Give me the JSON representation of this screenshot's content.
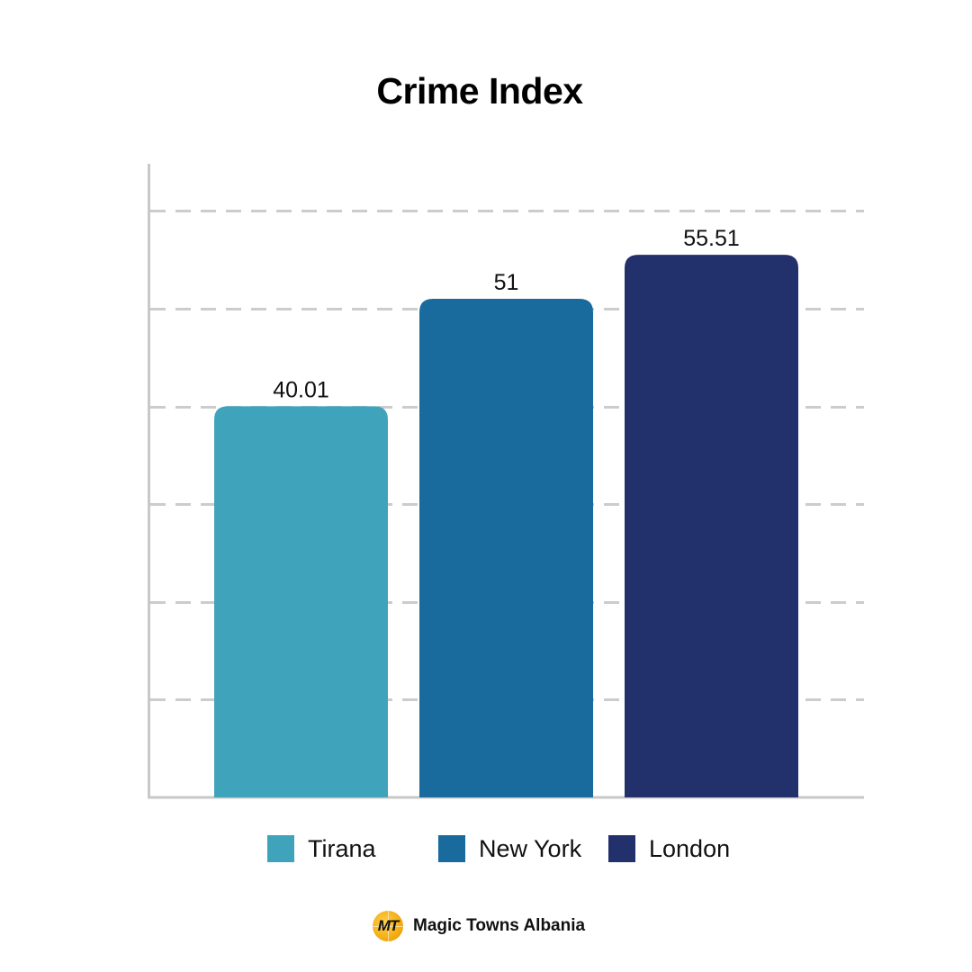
{
  "chart_data": {
    "type": "bar",
    "title": "Crime Index",
    "categories": [
      "Tirana",
      "New York",
      "London"
    ],
    "values": [
      40.01,
      51,
      55.51
    ],
    "value_labels": [
      "40.01",
      "51",
      "55.51"
    ],
    "colors": [
      "#40a3bc",
      "#186b9c",
      "#22306b"
    ],
    "ylim": [
      0,
      65
    ],
    "grid": true,
    "legend_position": "bottom"
  },
  "legend": {
    "items": [
      {
        "label": "Tirana",
        "color": "#40a3bc"
      },
      {
        "label": "New York",
        "color": "#186b9c"
      },
      {
        "label": "London",
        "color": "#22306b"
      }
    ]
  },
  "brand": {
    "logo_text": "MT",
    "name": "Magic Towns Albania",
    "logo_icon": "globe-logo-icon"
  }
}
